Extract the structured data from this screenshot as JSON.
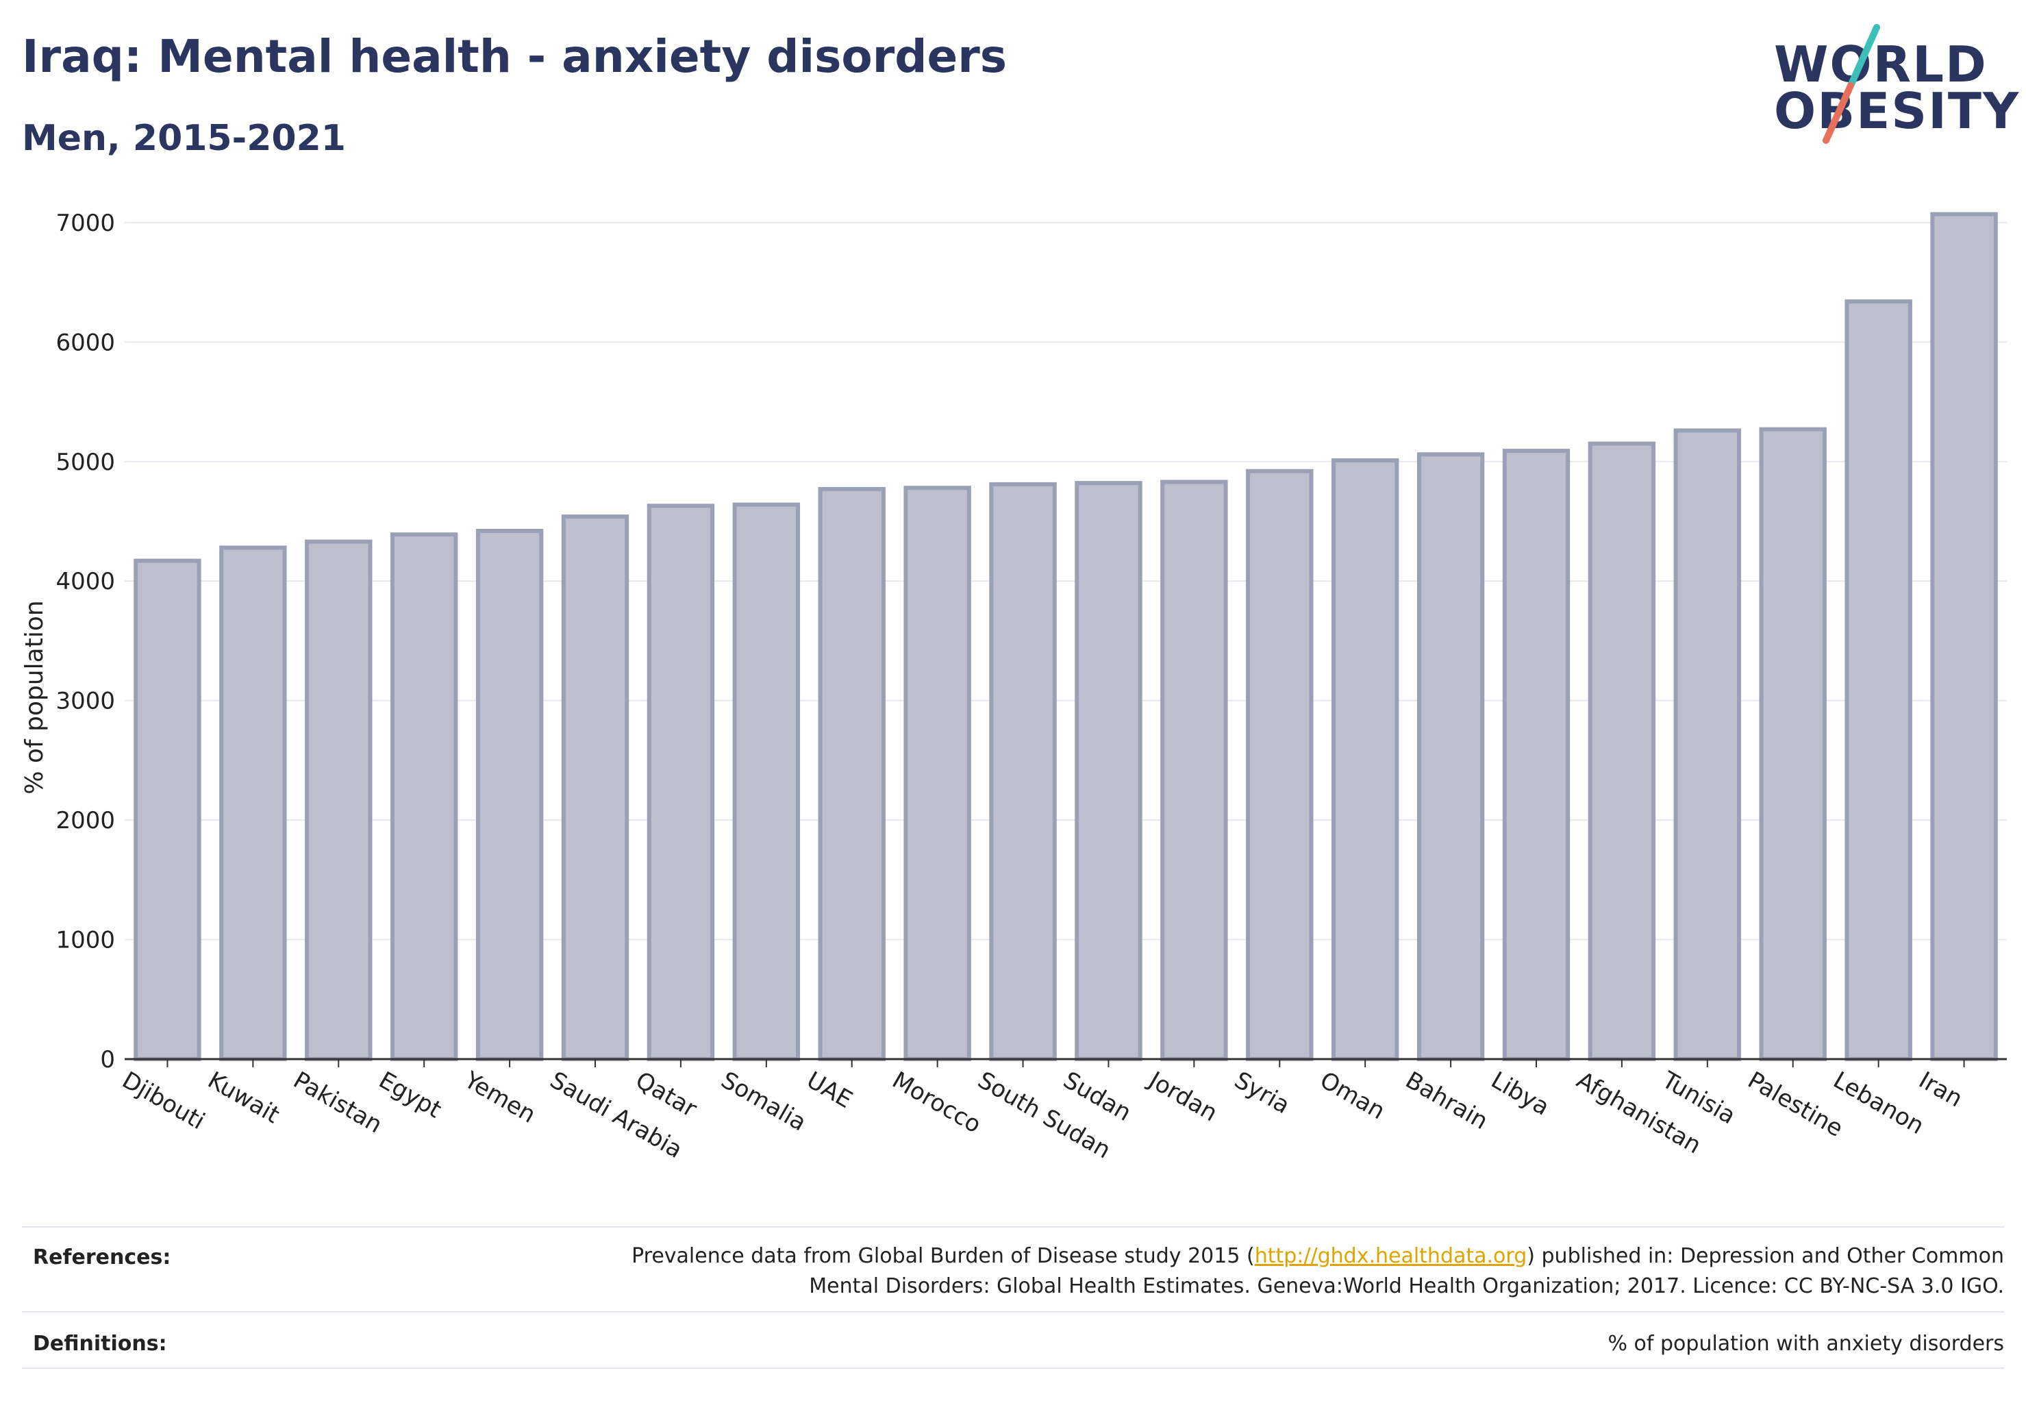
{
  "header": {
    "title": "Iraq: Mental health - anxiety disorders",
    "subtitle": "Men, 2015-2021"
  },
  "logo": {
    "line1": "WORLD",
    "line2": "OBESITY",
    "slash_color_top": "#3bbfb8",
    "slash_color_bottom": "#e8705a"
  },
  "colors": {
    "bar_fill": "#bcc0ce",
    "bar_stroke": "#9aa0b6",
    "text": "#2a3560",
    "grid": "#e6e8ee",
    "link": "#e0a400"
  },
  "chart_data": {
    "type": "bar",
    "ylabel": "% of population",
    "xlabel": "",
    "ylim": [
      0,
      7200
    ],
    "yticks": [
      0,
      1000,
      2000,
      3000,
      4000,
      5000,
      6000,
      7000
    ],
    "grid": true,
    "categories": [
      "Djibouti",
      "Kuwait",
      "Pakistan",
      "Egypt",
      "Yemen",
      "Saudi Arabia",
      "Qatar",
      "Somalia",
      "UAE",
      "Morocco",
      "South Sudan",
      "Sudan",
      "Jordan",
      "Syria",
      "Oman",
      "Bahrain",
      "Libya",
      "Afghanistan",
      "Tunisia",
      "Palestine",
      "Lebanon",
      "Iran"
    ],
    "values": [
      4170,
      4280,
      4330,
      4390,
      4420,
      4540,
      4630,
      4640,
      4770,
      4780,
      4810,
      4820,
      4830,
      4920,
      5010,
      5060,
      5090,
      5150,
      5260,
      5270,
      6340,
      7070
    ]
  },
  "footer": {
    "references_label": "References:",
    "references_pre": "Prevalence data from Global Burden of Disease study 2015 (",
    "references_link": "http://ghdx.healthdata.org",
    "references_post1": ") published in: Depression and Other Common",
    "references_post2": "Mental Disorders: Global Health Estimates. Geneva:World Health Organization; 2017. Licence: CC BY-NC-SA 3.0 IGO.",
    "definitions_label": "Definitions:",
    "definitions_text": "% of population with anxiety disorders"
  }
}
